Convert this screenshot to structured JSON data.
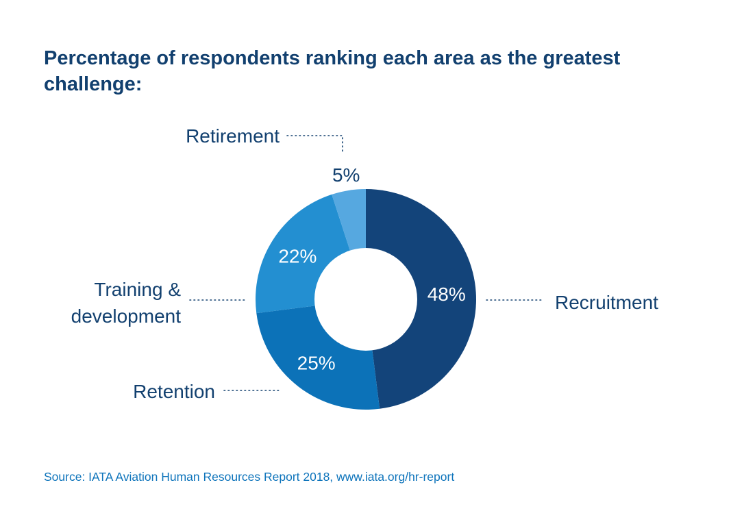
{
  "title": "Percentage of respondents ranking each area as the greatest challenge:",
  "source": "Source: IATA Aviation Human Resources Report 2018, www.iata.org/hr-report",
  "chart_data": {
    "type": "pie",
    "style": "donut",
    "title": "Percentage of respondents ranking each area as the greatest challenge:",
    "unit": "%",
    "slices": [
      {
        "label": "Recruitment",
        "value": 48,
        "display": "48%",
        "color": "#13447a",
        "label_lines": [
          "Recruitment"
        ]
      },
      {
        "label": "Retention",
        "value": 25,
        "display": "25%",
        "color": "#0c72b8",
        "label_lines": [
          "Retention"
        ]
      },
      {
        "label": "Training & development",
        "value": 22,
        "display": "22%",
        "color": "#238fd1",
        "label_lines": [
          "Training &",
          "development"
        ]
      },
      {
        "label": "Retirement",
        "value": 5,
        "display": "5%",
        "color": "#56a8e0",
        "label_lines": [
          "Retirement"
        ]
      }
    ]
  }
}
